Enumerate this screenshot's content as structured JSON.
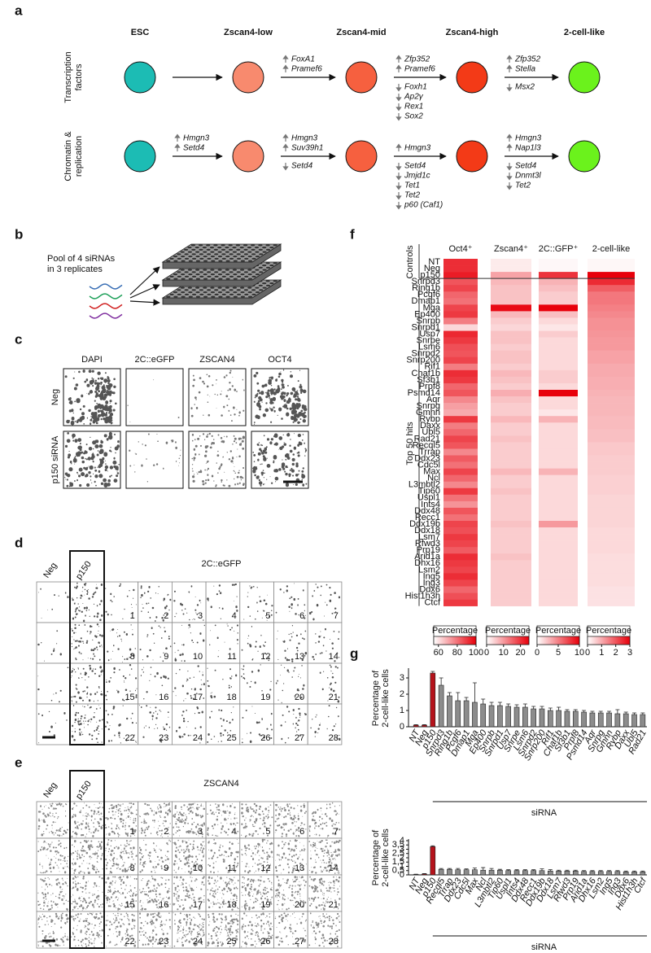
{
  "panel_a": {
    "label": "a",
    "stages": [
      {
        "name": "ESC",
        "color": "#1cbcb4"
      },
      {
        "name": "Zscan4-low",
        "color": "#f88a6e"
      },
      {
        "name": "Zscan4-mid",
        "color": "#f6603f"
      },
      {
        "name": "Zscan4-high",
        "color": "#f33a17"
      },
      {
        "name": "2-cell-like",
        "color": "#6bf21c"
      }
    ],
    "rows": [
      {
        "label": [
          "Transcription",
          "factors"
        ],
        "transitions": [
          {
            "up": [],
            "down": []
          },
          {
            "up": [
              "FoxA1",
              "Pramef6"
            ],
            "down": []
          },
          {
            "up": [
              "Zfp352",
              "Pramef6"
            ],
            "down": [
              "Foxh1",
              "Ap2γ",
              "Rex1",
              "Sox2"
            ]
          },
          {
            "up": [
              "Zfp352",
              "Stella"
            ],
            "down": [
              "Msx2"
            ]
          }
        ]
      },
      {
        "label": [
          "Chromatin &",
          "replication"
        ],
        "transitions": [
          {
            "up": [
              "Hmgn3",
              "Setd4"
            ],
            "down": []
          },
          {
            "up": [
              "Hmgn3",
              "Suv39h1"
            ],
            "down": [
              "Setd4"
            ]
          },
          {
            "up": [
              "Hmgn3"
            ],
            "down": [
              "Setd4",
              "Jmjd1c",
              "Tet1",
              "Tet2",
              "p60 (Caf1)"
            ]
          },
          {
            "up": [
              "Hmgn3",
              "Nap1l3"
            ],
            "down": [
              "Setd4",
              "Dnmt3l",
              "Tet2"
            ]
          }
        ]
      }
    ]
  },
  "panel_b": {
    "label": "b",
    "text": [
      "Pool of 4 siRNAs",
      "in 3 replicates"
    ]
  },
  "panel_c": {
    "label": "c",
    "columns": [
      "DAPI",
      "2C::eGFP",
      "ZSCAN4",
      "OCT4"
    ],
    "rows": [
      "Neg",
      "p150 siRNA"
    ]
  },
  "panel_d": {
    "label": "d",
    "title": "2C::eGFP",
    "controls": [
      "Neg",
      "p150"
    ],
    "wells": [
      1,
      2,
      3,
      4,
      5,
      6,
      7,
      8,
      9,
      10,
      11,
      12,
      13,
      14,
      15,
      16,
      17,
      18,
      19,
      20,
      21,
      22,
      23,
      24,
      25,
      26,
      27,
      28
    ]
  },
  "panel_e": {
    "label": "e",
    "title": "ZSCAN4",
    "controls": [
      "Neg",
      "p150"
    ],
    "wells": [
      1,
      2,
      3,
      4,
      5,
      6,
      7,
      8,
      9,
      10,
      11,
      12,
      13,
      14,
      15,
      16,
      17,
      18,
      19,
      20,
      21,
      22,
      23,
      24,
      25,
      26,
      27,
      28
    ]
  },
  "panel_f": {
    "label": "f",
    "groups": [
      "Controls",
      "Top 50 hits"
    ],
    "legend_title": "Percentage",
    "color": "#e8000b",
    "rows": [
      "NT",
      "Neg",
      "p150",
      "Snrpd3",
      "Ring1b",
      "Pcgf6",
      "Dmap1",
      "Mga",
      "Ep400",
      "Snrpb",
      "Snrpd1",
      "Usp7",
      "Snrpe",
      "Lsm6",
      "Snrpd2",
      "Snrp200",
      "Rif1",
      "Chaf1b",
      "Sf3b1",
      "Prpf8",
      "Psmd14",
      "Aqr",
      "Snrpg",
      "Gmnn",
      "Rybp",
      "Daxx",
      "Ubl5",
      "Rad21",
      "Recql5",
      "Trrap",
      "Ddx23",
      "Cdc5l",
      "Max",
      "Ncl",
      "L3mbtl2",
      "Tip60",
      "Uspl1",
      "Ints4",
      "Ddx48",
      "Recc1",
      "Ddx19b",
      "Ddx18",
      "Lsm7",
      "Rfwd3",
      "Prp19",
      "Arid1a",
      "Dhx16",
      "Lsm2",
      "Ing5",
      "Ing3",
      "Ddx6",
      "Hist1h3h",
      "Ctcf"
    ],
    "columns": [
      {
        "name": "Oct4⁺",
        "lim": [
          55,
          100
        ],
        "ticks": [
          60,
          80,
          100
        ],
        "values": [
          92,
          92,
          95,
          85,
          88,
          82,
          80,
          88,
          90,
          78,
          62,
          93,
          90,
          86,
          85,
          88,
          78,
          92,
          90,
          82,
          85,
          76,
          72,
          70,
          90,
          78,
          82,
          88,
          85,
          76,
          84,
          80,
          88,
          82,
          76,
          90,
          80,
          74,
          85,
          80,
          88,
          86,
          90,
          88,
          84,
          92,
          90,
          88,
          92,
          88,
          82,
          86,
          90
        ]
      },
      {
        "name": "Zscan4⁺",
        "lim": [
          0,
          25
        ],
        "ticks": [
          0,
          10,
          20
        ],
        "values": [
          2,
          2,
          9,
          7,
          6,
          6,
          6,
          24,
          7,
          5,
          4,
          6,
          6,
          5,
          6,
          6,
          5,
          7,
          6,
          5,
          8,
          6,
          5,
          5,
          7,
          5,
          5,
          6,
          5,
          5,
          5,
          5,
          7,
          5,
          5,
          6,
          5,
          5,
          5,
          5,
          6,
          5,
          5,
          5,
          5,
          6,
          5,
          5,
          5,
          5,
          5,
          5,
          5
        ]
      },
      {
        "name": "2C::GFP⁺",
        "lim": [
          0,
          10
        ],
        "ticks": [
          0,
          5,
          10
        ],
        "values": [
          0.3,
          0.3,
          8,
          3,
          2.5,
          2,
          2,
          10,
          2.5,
          1.5,
          1,
          2,
          1.5,
          1.5,
          1.5,
          1.5,
          1.5,
          2,
          2,
          1.5,
          10,
          1.5,
          1.5,
          1,
          3,
          1.5,
          1.5,
          1.5,
          1.5,
          1.5,
          1.5,
          1.5,
          3,
          1.5,
          1.5,
          1.5,
          1.5,
          1.5,
          1.5,
          1.5,
          4,
          1.5,
          1.5,
          1.5,
          1.5,
          1.5,
          1.5,
          1.5,
          1.5,
          1.5,
          1.5,
          1.5,
          1.5
        ]
      },
      {
        "name": "2-cell-like",
        "lim": [
          0,
          3
        ],
        "ticks": [
          0,
          1,
          2,
          3
        ],
        "values": [
          0.1,
          0.1,
          3,
          2.5,
          1.9,
          1.6,
          1.6,
          1.5,
          1.4,
          1.3,
          1.3,
          1.25,
          1.2,
          1.2,
          1.1,
          1.1,
          1,
          1,
          0.95,
          0.95,
          0.9,
          0.85,
          0.85,
          0.85,
          0.8,
          0.8,
          0.75,
          0.75,
          0.65,
          0.65,
          0.6,
          0.6,
          0.6,
          0.55,
          0.55,
          0.55,
          0.5,
          0.5,
          0.5,
          0.5,
          0.5,
          0.45,
          0.45,
          0.45,
          0.45,
          0.4,
          0.4,
          0.4,
          0.4,
          0.4,
          0.35,
          0.35,
          0.35
        ]
      }
    ]
  },
  "panel_g": {
    "label": "g",
    "charts": [
      {
        "type": "bar",
        "y_label": [
          "Percentage of",
          "2-cell-like cells"
        ],
        "x_label": "siRNA",
        "ylim": [
          0,
          3.5
        ],
        "yticks": [
          0,
          1,
          2,
          3
        ],
        "categories": [
          "NT",
          "Neg",
          "p150",
          "Snrpd3",
          "Ring1b",
          "Pcgf6",
          "Dmap1",
          "Mga",
          "Ep400",
          "Snrpb",
          "Snrpd1",
          "Usp7",
          "Snrpe",
          "Lsm6",
          "Snrpd2",
          "Snrp200",
          "Rif1",
          "Chaf1b",
          "Sf3b1",
          "Prpf8",
          "Psmd14",
          "Aqr",
          "Snrpg",
          "Gmnn",
          "Rybp",
          "Daxx",
          "Ubl5",
          "Rad21"
        ],
        "values": [
          0.1,
          0.1,
          3.3,
          2.55,
          1.9,
          1.6,
          1.6,
          1.5,
          1.4,
          1.3,
          1.3,
          1.25,
          1.2,
          1.2,
          1.1,
          1.1,
          1,
          1,
          0.95,
          0.95,
          0.9,
          0.85,
          0.85,
          0.85,
          0.8,
          0.8,
          0.75,
          0.75
        ],
        "errors": [
          0.03,
          0.03,
          0.1,
          0.45,
          0.2,
          0.5,
          0.2,
          1.2,
          0.3,
          0.2,
          0.2,
          0.15,
          0.15,
          0.2,
          0.15,
          0.15,
          0.15,
          0.2,
          0.1,
          0.1,
          0.1,
          0.1,
          0.1,
          0.1,
          0.25,
          0.1,
          0.1,
          0.1
        ],
        "colors": [
          "#b5121b",
          "#b5121b",
          "#b5121b",
          "#8c8c8c",
          "#8c8c8c",
          "#8c8c8c",
          "#8c8c8c",
          "#8c8c8c",
          "#8c8c8c",
          "#8c8c8c",
          "#8c8c8c",
          "#8c8c8c",
          "#8c8c8c",
          "#8c8c8c",
          "#8c8c8c",
          "#8c8c8c",
          "#8c8c8c",
          "#8c8c8c",
          "#8c8c8c",
          "#8c8c8c",
          "#8c8c8c",
          "#8c8c8c",
          "#8c8c8c",
          "#8c8c8c",
          "#8c8c8c",
          "#8c8c8c",
          "#8c8c8c",
          "#8c8c8c"
        ]
      },
      {
        "type": "bar",
        "y_label": [
          "Percentage of",
          "2-cell-like cells"
        ],
        "x_label": "siRNA",
        "ylim": [
          0,
          4
        ],
        "yticks": [
          0,
          {
            "value": 0.5,
            "label": "0,5"
          },
          1,
          {
            "value": 1.5,
            "label": "1,5"
          },
          2,
          {
            "value": 2.5,
            "label": "2,5"
          },
          3,
          {
            "value": 3.5,
            "label": "3,5"
          },
          4
        ],
        "categories": [
          "NT",
          "Neg",
          "p150",
          "Recql5",
          "Trrap",
          "Ddx23",
          "Cdc5l",
          "Max",
          "Ncl",
          "L3mbtl2",
          "Tip60",
          "Uspl1",
          "Ints4",
          "Ddx48",
          "Recc1",
          "Ddx19b",
          "Ddx18",
          "Lsm7",
          "Rfwd3",
          "Prp19",
          "Arid1a",
          "Dhx16",
          "Lsm2",
          "Ing5",
          "Ing3",
          "Ddx6",
          "Hist1h3h",
          "Ctcf"
        ],
        "values": [
          0.05,
          0.1,
          3.3,
          0.65,
          0.65,
          0.6,
          0.6,
          0.6,
          0.55,
          0.55,
          0.55,
          0.5,
          0.5,
          0.5,
          0.5,
          0.5,
          0.45,
          0.45,
          0.45,
          0.45,
          0.4,
          0.4,
          0.4,
          0.4,
          0.4,
          0.35,
          0.35,
          0.35
        ],
        "errors": [
          0.03,
          0.05,
          0.1,
          0.1,
          0.1,
          0.15,
          0.1,
          0.2,
          0.3,
          0.2,
          0.1,
          0.1,
          0.1,
          0.1,
          0.1,
          0.2,
          0.15,
          0.1,
          0.1,
          0.1,
          0.1,
          0.1,
          0.1,
          0.1,
          0.1,
          0.1,
          0.1,
          0.1
        ],
        "colors": [
          "#b5121b",
          "#b5121b",
          "#b5121b",
          "#8c8c8c",
          "#8c8c8c",
          "#8c8c8c",
          "#8c8c8c",
          "#8c8c8c",
          "#8c8c8c",
          "#8c8c8c",
          "#8c8c8c",
          "#8c8c8c",
          "#8c8c8c",
          "#8c8c8c",
          "#8c8c8c",
          "#8c8c8c",
          "#8c8c8c",
          "#8c8c8c",
          "#8c8c8c",
          "#8c8c8c",
          "#8c8c8c",
          "#8c8c8c",
          "#8c8c8c",
          "#8c8c8c",
          "#8c8c8c",
          "#8c8c8c",
          "#8c8c8c",
          "#8c8c8c"
        ]
      }
    ]
  }
}
